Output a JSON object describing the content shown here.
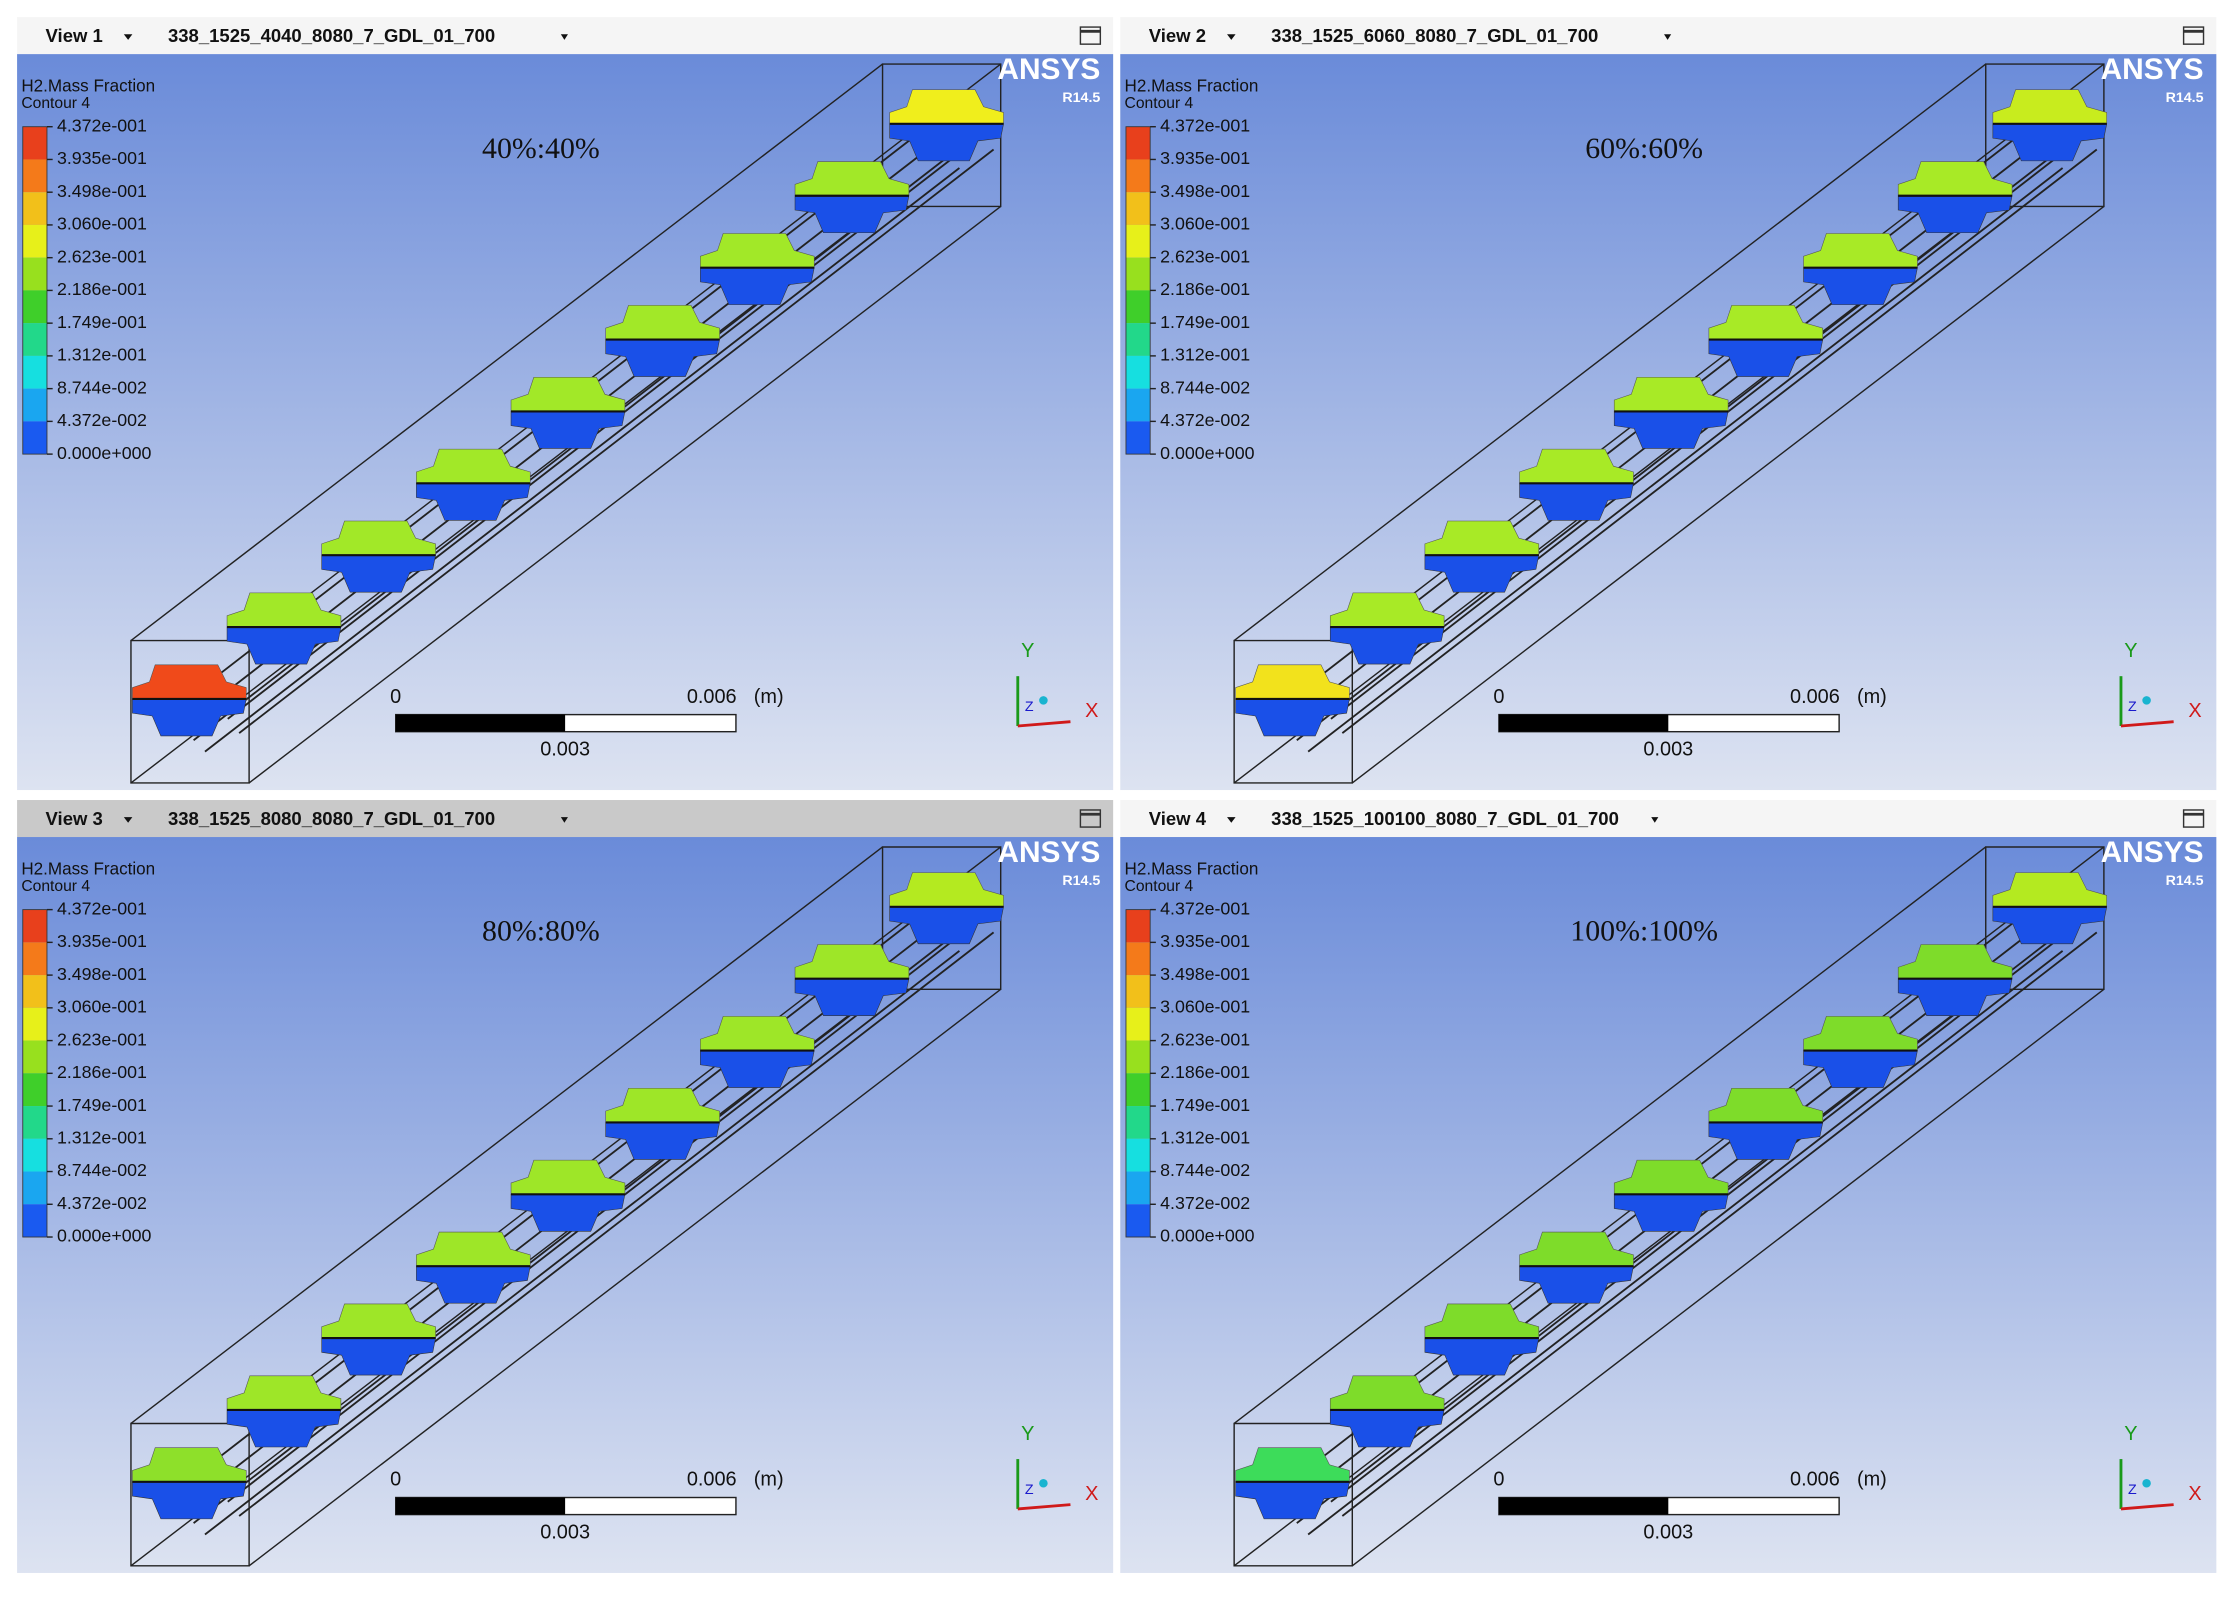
{
  "views": [
    {
      "title": "View 1",
      "file": "338_1525_4040_8080_7_GDL_01_700",
      "annotation": "40%:40%",
      "legend": {
        "title": "H2.Mass Fraction",
        "subtitle": "Contour 4",
        "labels": [
          "4.372e-001",
          "3.935e-001",
          "3.498e-001",
          "3.060e-001",
          "2.623e-001",
          "2.186e-001",
          "1.749e-001",
          "1.312e-001",
          "8.744e-002",
          "4.372e-002",
          "0.000e+000"
        ]
      },
      "logo": "ANSYS",
      "version": "R14.5",
      "scale": {
        "start": "0",
        "end": "0.006",
        "unit": "(m)",
        "mid": "0.003"
      },
      "axes": {
        "y": "Y",
        "z": "Z",
        "x": "X"
      }
    },
    {
      "title": "View 2",
      "file": "338_1525_6060_8080_7_GDL_01_700",
      "annotation": "60%:60%",
      "legend": {
        "title": "H2.Mass Fraction",
        "subtitle": "Contour 4",
        "labels": [
          "4.372e-001",
          "3.935e-001",
          "3.498e-001",
          "3.060e-001",
          "2.623e-001",
          "2.186e-001",
          "1.749e-001",
          "1.312e-001",
          "8.744e-002",
          "4.372e-002",
          "0.000e+000"
        ]
      },
      "logo": "ANSYS",
      "version": "R14.5",
      "scale": {
        "start": "0",
        "end": "0.006",
        "unit": "(m)",
        "mid": "0.003"
      },
      "axes": {
        "y": "Y",
        "z": "Z",
        "x": "X"
      }
    },
    {
      "title": "View 3",
      "file": "338_1525_8080_8080_7_GDL_01_700",
      "annotation": "80%:80%",
      "legend": {
        "title": "H2.Mass Fraction",
        "subtitle": "Contour 4",
        "labels": [
          "4.372e-001",
          "3.935e-001",
          "3.498e-001",
          "3.060e-001",
          "2.623e-001",
          "2.186e-001",
          "1.749e-001",
          "1.312e-001",
          "8.744e-002",
          "4.372e-002",
          "0.000e+000"
        ]
      },
      "logo": "ANSYS",
      "version": "R14.5",
      "scale": {
        "start": "0",
        "end": "0.006",
        "unit": "(m)",
        "mid": "0.003"
      },
      "axes": {
        "y": "Y",
        "z": "Z",
        "x": "X"
      }
    },
    {
      "title": "View 4",
      "file": "338_1525_100100_8080_7_GDL_01_700",
      "annotation": "100%:100%",
      "legend": {
        "title": "H2.Mass Fraction",
        "subtitle": "Contour 4",
        "labels": [
          "4.372e-001",
          "3.935e-001",
          "3.498e-001",
          "3.060e-001",
          "2.623e-001",
          "2.186e-001",
          "1.749e-001",
          "1.312e-001",
          "8.744e-002",
          "4.372e-002",
          "0.000e+000"
        ]
      },
      "logo": "ANSYS",
      "version": "R14.5",
      "scale": {
        "start": "0",
        "end": "0.006",
        "unit": "(m)",
        "mid": "0.003"
      },
      "axes": {
        "y": "Y",
        "z": "Z",
        "x": "X"
      }
    }
  ]
}
